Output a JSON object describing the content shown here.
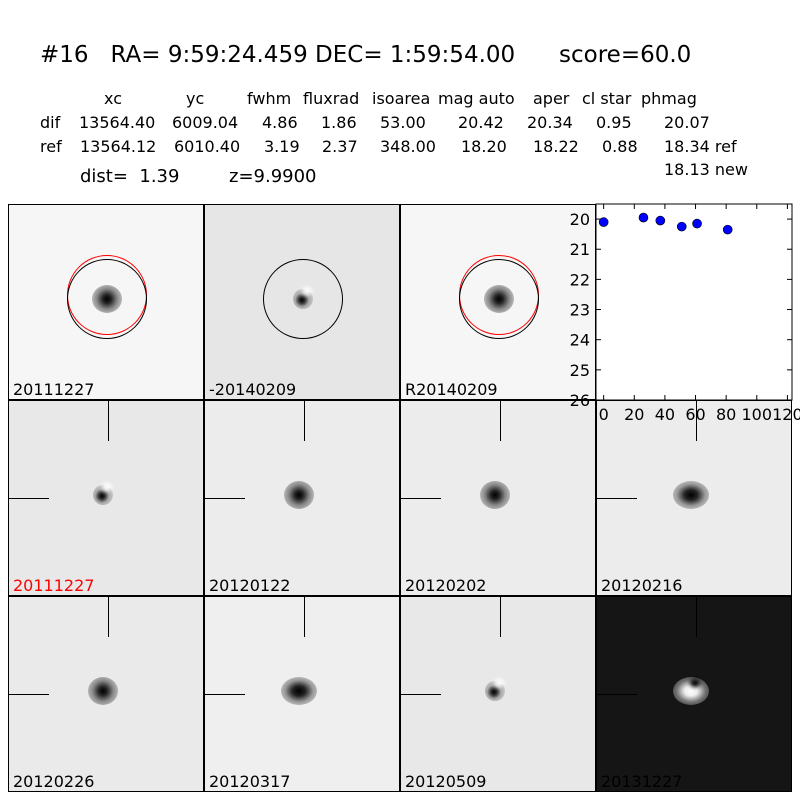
{
  "header": {
    "title": "#16   RA= 9:59:24.459 DEC= 1:59:54.00      score=60.0",
    "columns": [
      "xc",
      "yc",
      "fwhm",
      "fluxrad",
      "isoarea",
      "mag auto",
      "aper",
      "cl star",
      "phmag"
    ],
    "rows": [
      {
        "label": "dif",
        "values": [
          "13564.40",
          "6009.04",
          "4.86",
          "1.86",
          "53.00",
          "20.42",
          "20.34",
          "0.95",
          "20.07"
        ]
      },
      {
        "label": "ref",
        "values": [
          "13564.12",
          "6010.40",
          "3.19",
          "2.37",
          "348.00",
          "18.20",
          "18.22",
          "0.88",
          "18.34 ref"
        ]
      }
    ],
    "extra_phmag": "18.13 new",
    "dist": "dist=  1.39",
    "z": "z=9.9900"
  },
  "stamps": [
    {
      "label": "20111227",
      "label_color": "#000000",
      "bg": "#f6f6f6",
      "star": "dark",
      "circles": [
        "red",
        "black"
      ],
      "cross": false
    },
    {
      "label": "-20140209",
      "label_color": "#000000",
      "bg": "#e6e6e6",
      "star": "dipole",
      "circles": [
        "black"
      ],
      "cross": false
    },
    {
      "label": "R20140209",
      "label_color": "#000000",
      "bg": "#f6f6f6",
      "star": "dark",
      "circles": [
        "red",
        "black"
      ],
      "cross": false
    },
    null,
    {
      "label": "20111227",
      "label_color": "#ff0000",
      "bg": "#e8e8e8",
      "star": "dipole",
      "circles": [],
      "cross": true
    },
    {
      "label": "20120122",
      "label_color": "#000000",
      "bg": "#ececec",
      "star": "dark",
      "circles": [],
      "cross": true
    },
    {
      "label": "20120202",
      "label_color": "#000000",
      "bg": "#ececec",
      "star": "dark",
      "circles": [],
      "cross": true
    },
    {
      "label": "20120216",
      "label_color": "#000000",
      "bg": "#ececec",
      "star": "elong",
      "circles": [],
      "cross": true
    },
    {
      "label": "20120226",
      "label_color": "#000000",
      "bg": "#eaeaea",
      "star": "dark",
      "circles": [],
      "cross": true
    },
    {
      "label": "20120317",
      "label_color": "#000000",
      "bg": "#efefef",
      "star": "elong",
      "circles": [],
      "cross": true
    },
    {
      "label": "20120509",
      "label_color": "#000000",
      "bg": "#e8e8e8",
      "star": "dipole",
      "circles": [],
      "cross": true
    },
    {
      "label": "20131227",
      "label_color": "#000000",
      "bg": "#151515",
      "star": "bright",
      "circles": [],
      "cross": true
    }
  ],
  "chart_data": {
    "type": "scatter",
    "x": [
      0,
      26,
      37,
      51,
      61,
      81
    ],
    "y": [
      20.1,
      19.95,
      20.05,
      20.25,
      20.15,
      20.35
    ],
    "xlim": [
      -5,
      123
    ],
    "ylim": [
      26,
      19.5
    ],
    "y_inverted": true,
    "xticks": [
      "0",
      "20",
      "40",
      "60",
      "80",
      "100",
      "120"
    ],
    "yticks": [
      "20",
      "21",
      "22",
      "23",
      "24",
      "25",
      "26"
    ],
    "marker_color": "#0000ff",
    "grid": false
  }
}
